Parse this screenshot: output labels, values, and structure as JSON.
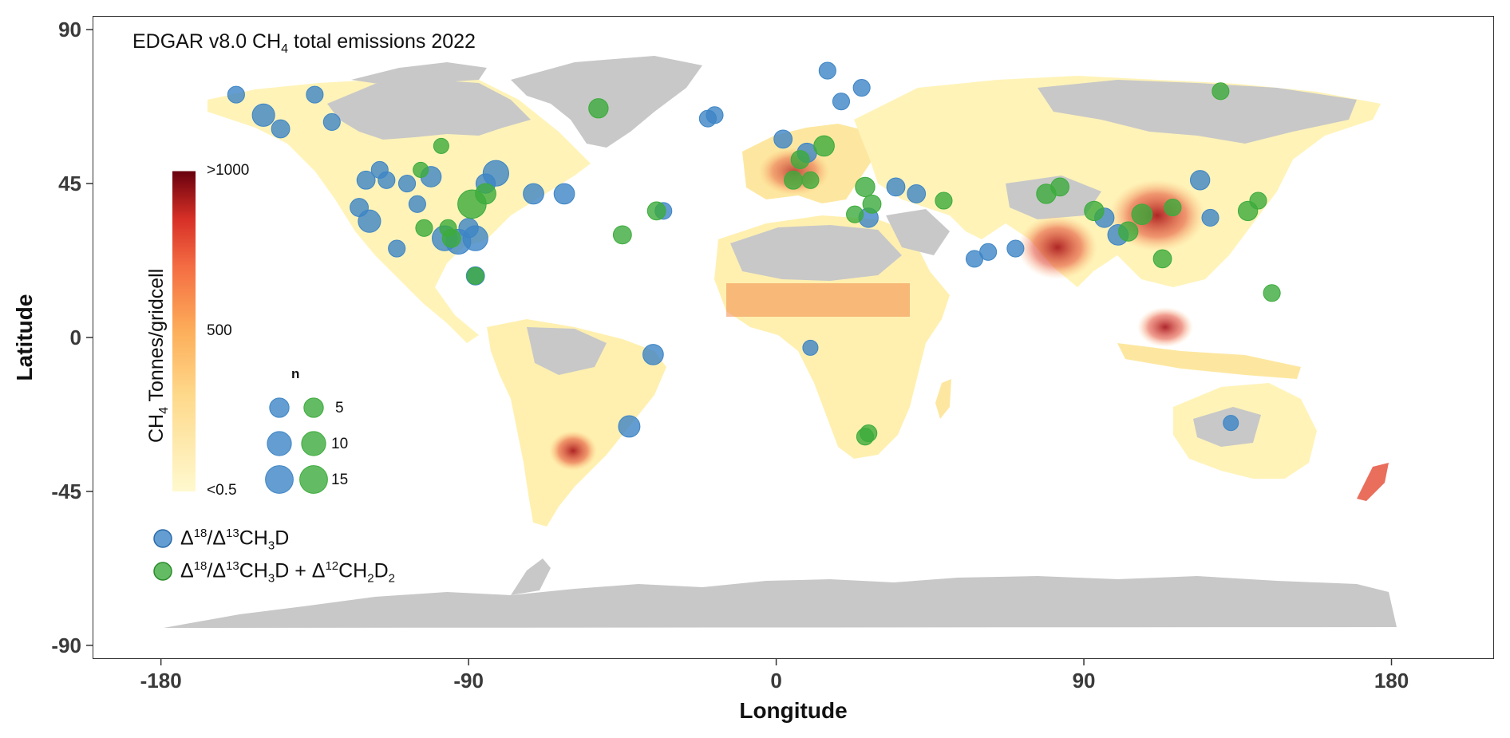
{
  "map": {
    "title_prefix": "EDGAR v8.0 CH",
    "title_sub": "4",
    "title_suffix": " total emissions 2022",
    "x_axis_title": "Longitude",
    "y_axis_title": "Latitude",
    "x_ticks": [
      "-180",
      "-90",
      "0",
      "90",
      "180"
    ],
    "x_tick_values": [
      -180,
      -90,
      0,
      90,
      180
    ],
    "y_ticks": [
      "90",
      "45",
      "0",
      "-45",
      "-90"
    ],
    "y_tick_values": [
      90,
      45,
      0,
      -45,
      -90
    ],
    "xlim": [
      -200,
      210
    ],
    "ylim": [
      -94,
      94
    ],
    "colors": {
      "land_no_data": "#c8c8c8",
      "low_emission": "#fff7c4",
      "mid_emission": "#fdb450",
      "high_emission": "#d7301f",
      "max_emission": "#67000d",
      "group_a": "#3d85c6",
      "group_b": "#3cab3c"
    }
  },
  "colorbar": {
    "title_prefix": "CH",
    "title_sub": "4",
    "title_suffix": " Tonnes/gridcell",
    "labels": [
      ">1000",
      "500",
      "<0.5"
    ],
    "label_values": [
      1000,
      500,
      0.5
    ]
  },
  "size_legend": {
    "title": "n",
    "labels": [
      "5",
      "10",
      "15"
    ],
    "values": [
      5,
      10,
      15
    ]
  },
  "group_legend": {
    "entries": [
      {
        "name": "group_a",
        "pre": "Δ",
        "sup1": "18",
        "mid": "/Δ",
        "sup2": "13",
        "body": "CH",
        "sub": "3",
        "tail": "D"
      },
      {
        "name": "group_b",
        "pre": "Δ",
        "sup1": "18",
        "mid": "/Δ",
        "sup2": "13",
        "body": "CH",
        "sub": "3",
        "tail": "D + Δ",
        "sup3": "12",
        "body2": "CH",
        "sub2": "2",
        "tail2": "D",
        "sub3": "2"
      }
    ]
  },
  "sites": [
    {
      "group": "a",
      "lon": -150,
      "lat": 65,
      "n": 8
    },
    {
      "group": "a",
      "lon": -145,
      "lat": 61,
      "n": 4
    },
    {
      "group": "a",
      "lon": -158,
      "lat": 71,
      "n": 3
    },
    {
      "group": "a",
      "lon": -135,
      "lat": 71,
      "n": 3
    },
    {
      "group": "a",
      "lon": -130,
      "lat": 63,
      "n": 3
    },
    {
      "group": "a",
      "lon": -120,
      "lat": 46,
      "n": 4
    },
    {
      "group": "a",
      "lon": -116,
      "lat": 49,
      "n": 3
    },
    {
      "group": "a",
      "lon": -114,
      "lat": 46,
      "n": 3
    },
    {
      "group": "a",
      "lon": -122,
      "lat": 38,
      "n": 4
    },
    {
      "group": "a",
      "lon": -119,
      "lat": 34,
      "n": 8
    },
    {
      "group": "a",
      "lon": -111,
      "lat": 26,
      "n": 3
    },
    {
      "group": "a",
      "lon": -108,
      "lat": 45,
      "n": 3
    },
    {
      "group": "a",
      "lon": -105,
      "lat": 39,
      "n": 3
    },
    {
      "group": "a",
      "lon": -101,
      "lat": 47,
      "n": 6
    },
    {
      "group": "a",
      "lon": -97,
      "lat": 29,
      "n": 11
    },
    {
      "group": "a",
      "lon": -93,
      "lat": 28,
      "n": 11
    },
    {
      "group": "a",
      "lon": -88,
      "lat": 29,
      "n": 11
    },
    {
      "group": "a",
      "lon": -90,
      "lat": 32,
      "n": 5
    },
    {
      "group": "a",
      "lon": -82,
      "lat": 48,
      "n": 12
    },
    {
      "group": "a",
      "lon": -85,
      "lat": 45,
      "n": 5
    },
    {
      "group": "a",
      "lon": -71,
      "lat": 42,
      "n": 6
    },
    {
      "group": "a",
      "lon": -62,
      "lat": 42,
      "n": 6
    },
    {
      "group": "a",
      "lon": -88,
      "lat": 18,
      "n": 4
    },
    {
      "group": "a",
      "lon": -36,
      "lat": -5,
      "n": 6
    },
    {
      "group": "a",
      "lon": -43,
      "lat": -26,
      "n": 7
    },
    {
      "group": "a",
      "lon": -33,
      "lat": 37,
      "n": 3
    },
    {
      "group": "a",
      "lon": -18,
      "lat": 65,
      "n": 3
    },
    {
      "group": "a",
      "lon": -20,
      "lat": 64,
      "n": 3
    },
    {
      "group": "a",
      "lon": 15,
      "lat": 78,
      "n": 3
    },
    {
      "group": "a",
      "lon": 19,
      "lat": 69,
      "n": 3
    },
    {
      "group": "a",
      "lon": 25,
      "lat": 73,
      "n": 3
    },
    {
      "group": "a",
      "lon": 2,
      "lat": 58,
      "n": 4
    },
    {
      "group": "a",
      "lon": 9,
      "lat": 54,
      "n": 5
    },
    {
      "group": "a",
      "lon": 27,
      "lat": 35,
      "n": 5
    },
    {
      "group": "a",
      "lon": 35,
      "lat": 44,
      "n": 4
    },
    {
      "group": "a",
      "lon": 41,
      "lat": 42,
      "n": 4
    },
    {
      "group": "a",
      "lon": 58,
      "lat": 23,
      "n": 3
    },
    {
      "group": "a",
      "lon": 62,
      "lat": 25,
      "n": 3
    },
    {
      "group": "a",
      "lon": 70,
      "lat": 26,
      "n": 3
    },
    {
      "group": "a",
      "lon": 96,
      "lat": 35,
      "n": 5
    },
    {
      "group": "a",
      "lon": 100,
      "lat": 30,
      "n": 6
    },
    {
      "group": "a",
      "lon": 124,
      "lat": 46,
      "n": 5
    },
    {
      "group": "a",
      "lon": 127,
      "lat": 35,
      "n": 3
    },
    {
      "group": "a",
      "lon": 10,
      "lat": -3,
      "n": 2
    },
    {
      "group": "a",
      "lon": 133,
      "lat": -25,
      "n": 2
    },
    {
      "group": "b",
      "lon": -52,
      "lat": 67,
      "n": 5
    },
    {
      "group": "b",
      "lon": -89,
      "lat": 39,
      "n": 16
    },
    {
      "group": "b",
      "lon": -85,
      "lat": 42,
      "n": 6
    },
    {
      "group": "b",
      "lon": -95,
      "lat": 29,
      "n": 4
    },
    {
      "group": "b",
      "lon": -96,
      "lat": 32,
      "n": 3
    },
    {
      "group": "b",
      "lon": -103,
      "lat": 32,
      "n": 3
    },
    {
      "group": "b",
      "lon": -45,
      "lat": 30,
      "n": 4
    },
    {
      "group": "b",
      "lon": -35,
      "lat": 37,
      "n": 4
    },
    {
      "group": "b",
      "lon": -104,
      "lat": 49,
      "n": 2
    },
    {
      "group": "b",
      "lon": -98,
      "lat": 56,
      "n": 2
    },
    {
      "group": "b",
      "lon": 14,
      "lat": 56,
      "n": 6
    },
    {
      "group": "b",
      "lon": 7,
      "lat": 52,
      "n": 4
    },
    {
      "group": "b",
      "lon": 5,
      "lat": 46,
      "n": 4
    },
    {
      "group": "b",
      "lon": 10,
      "lat": 46,
      "n": 3
    },
    {
      "group": "b",
      "lon": 26,
      "lat": 44,
      "n": 5
    },
    {
      "group": "b",
      "lon": 28,
      "lat": 39,
      "n": 4
    },
    {
      "group": "b",
      "lon": 23,
      "lat": 36,
      "n": 3
    },
    {
      "group": "b",
      "lon": 49,
      "lat": 40,
      "n": 3
    },
    {
      "group": "b",
      "lon": 79,
      "lat": 42,
      "n": 5
    },
    {
      "group": "b",
      "lon": 83,
      "lat": 44,
      "n": 4
    },
    {
      "group": "b",
      "lon": 93,
      "lat": 37,
      "n": 5
    },
    {
      "group": "b",
      "lon": 107,
      "lat": 36,
      "n": 6
    },
    {
      "group": "b",
      "lon": 103,
      "lat": 31,
      "n": 5
    },
    {
      "group": "b",
      "lon": 116,
      "lat": 38,
      "n": 3
    },
    {
      "group": "b",
      "lon": 113,
      "lat": 23,
      "n": 4
    },
    {
      "group": "b",
      "lon": 138,
      "lat": 37,
      "n": 5
    },
    {
      "group": "b",
      "lon": 141,
      "lat": 40,
      "n": 3
    },
    {
      "group": "b",
      "lon": 145,
      "lat": 13,
      "n": 3
    },
    {
      "group": "b",
      "lon": 27,
      "lat": -28,
      "n": 3
    },
    {
      "group": "b",
      "lon": 26,
      "lat": -29,
      "n": 3
    },
    {
      "group": "b",
      "lon": -88,
      "lat": 18,
      "n": 3
    },
    {
      "group": "b",
      "lon": 130,
      "lat": 72,
      "n": 3
    }
  ]
}
